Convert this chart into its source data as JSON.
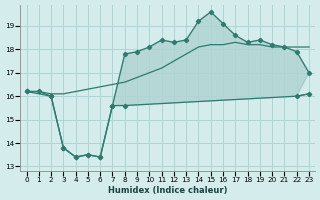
{
  "xlabel": "Humidex (Indice chaleur)",
  "bg_color": "#d4ecec",
  "grid_color": "#aed4d4",
  "line_color": "#2d7a6e",
  "xlim": [
    -0.5,
    23.5
  ],
  "ylim": [
    12.8,
    19.9
  ],
  "xticks": [
    0,
    1,
    2,
    3,
    4,
    5,
    6,
    7,
    8,
    9,
    10,
    11,
    12,
    13,
    14,
    15,
    16,
    17,
    18,
    19,
    20,
    21,
    22,
    23
  ],
  "yticks": [
    13,
    14,
    15,
    16,
    17,
    18,
    19
  ],
  "top_line_x": [
    0,
    1,
    2,
    3,
    4,
    5,
    6,
    7,
    8,
    9,
    10,
    11,
    12,
    13,
    14,
    15,
    16,
    17,
    18,
    19,
    20,
    21,
    22,
    23
  ],
  "top_line_y": [
    16.2,
    16.2,
    16.1,
    16.1,
    16.2,
    16.3,
    16.4,
    16.5,
    16.6,
    16.8,
    17.0,
    17.2,
    17.5,
    17.8,
    18.1,
    18.2,
    18.2,
    18.3,
    18.2,
    18.2,
    18.1,
    18.1,
    18.1,
    18.1
  ],
  "jagged_line_x": [
    0,
    1,
    2,
    3,
    4,
    5,
    6,
    7,
    8,
    9,
    10,
    11,
    12,
    13,
    14,
    15,
    16,
    17,
    18,
    19,
    20,
    21,
    22,
    23
  ],
  "jagged_line_y": [
    16.2,
    16.2,
    16.0,
    13.8,
    13.4,
    13.5,
    13.4,
    15.6,
    17.8,
    17.9,
    18.1,
    18.4,
    18.3,
    18.4,
    19.2,
    19.6,
    19.1,
    18.6,
    18.3,
    18.4,
    18.2,
    18.1,
    17.9,
    17.0
  ],
  "bottom_line_x": [
    0,
    2,
    3,
    4,
    5,
    6,
    7,
    8,
    22,
    23
  ],
  "bottom_line_y": [
    16.2,
    16.0,
    13.8,
    13.4,
    13.5,
    13.4,
    15.6,
    15.6,
    16.0,
    16.1
  ],
  "polygon_x": [
    0,
    1,
    2,
    3,
    4,
    5,
    6,
    7,
    8,
    9,
    10,
    11,
    12,
    13,
    14,
    15,
    16,
    17,
    18,
    19,
    20,
    21,
    22,
    23,
    22,
    8,
    7,
    6,
    5,
    4,
    3,
    2,
    1,
    0
  ],
  "polygon_y": [
    16.2,
    16.2,
    16.0,
    13.8,
    13.4,
    13.5,
    13.4,
    15.6,
    17.8,
    17.9,
    18.1,
    18.4,
    18.3,
    18.4,
    19.2,
    19.6,
    19.1,
    18.6,
    18.3,
    18.4,
    18.2,
    18.1,
    17.9,
    17.0,
    16.0,
    15.6,
    15.6,
    13.4,
    13.5,
    13.4,
    13.8,
    16.0,
    16.2,
    16.2
  ]
}
